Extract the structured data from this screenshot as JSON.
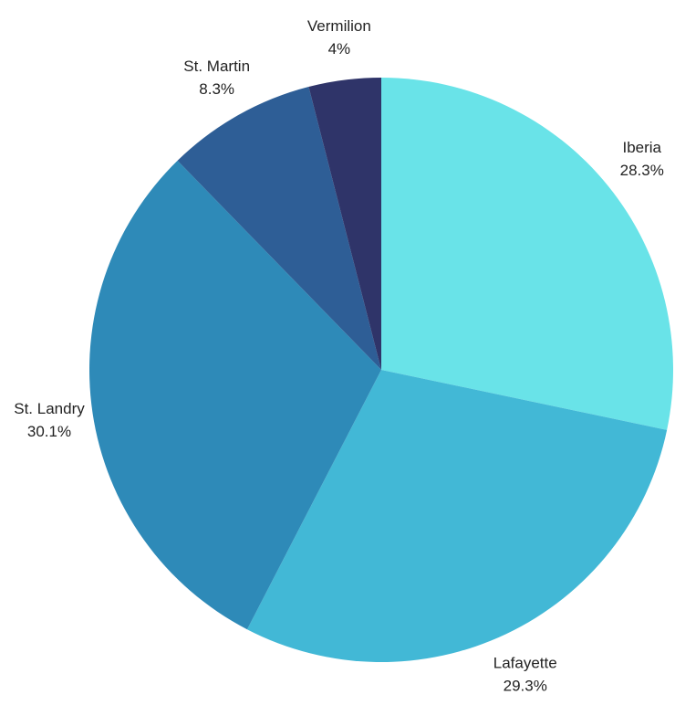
{
  "chart_data": {
    "type": "pie",
    "categories": [
      "Iberia",
      "Lafayette",
      "St. Landry",
      "St. Martin",
      "Vermilion"
    ],
    "values": [
      28.3,
      29.3,
      30.1,
      8.3,
      4
    ],
    "value_labels": [
      "28.3%",
      "29.3%",
      "30.1%",
      "8.3%",
      "4%"
    ],
    "colors": [
      "#69e3e8",
      "#42b8d6",
      "#2e8ab8",
      "#2e5e96",
      "#2f3469"
    ]
  }
}
